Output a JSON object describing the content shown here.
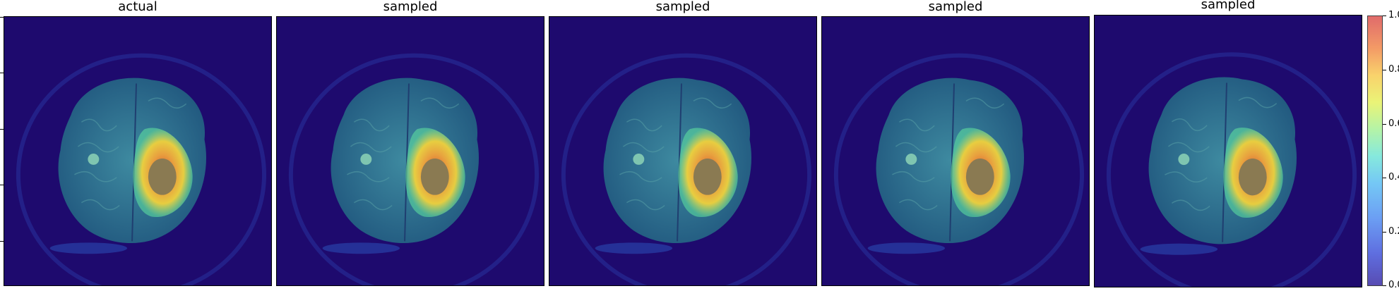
{
  "panels": [
    {
      "title": "actual"
    },
    {
      "title": "sampled"
    },
    {
      "title": "sampled"
    },
    {
      "title": "sampled"
    },
    {
      "title": "sampled"
    }
  ],
  "colorbar": {
    "colormap": "jet",
    "ticks": [
      "0.0",
      "0.2",
      "0.4",
      "0.6",
      "0.8",
      "1.0"
    ]
  },
  "colors": {
    "background_overlay": "#1e0a6e",
    "brain_tissue": "#2f6f86",
    "lesion_core": "#8a7a52",
    "hot": "#e24a2a",
    "warm": "#f1d23c"
  }
}
